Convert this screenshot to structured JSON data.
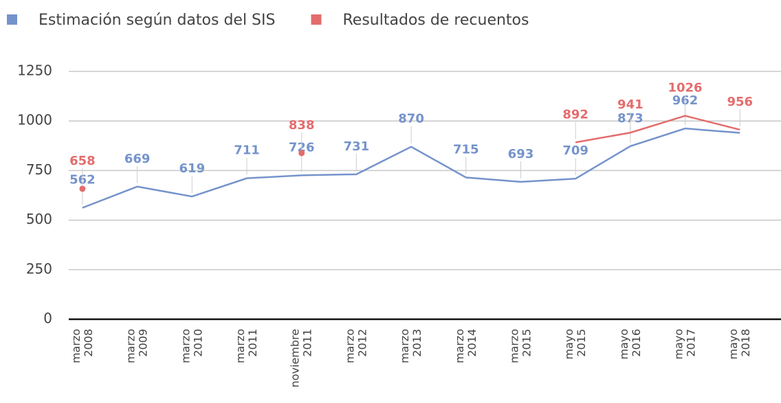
{
  "chart_data": {
    "type": "line",
    "categories": [
      "marzo 2008",
      "marzo 2009",
      "marzo 2010",
      "marzo 2011",
      "noviembre 2011",
      "marzo 2012",
      "marzo 2013",
      "marzo 2014",
      "marzo 2015",
      "mayo 2015",
      "mayo 2016",
      "mayo 2017",
      "mayo 2018"
    ],
    "series": [
      {
        "name": "Estimación según datos del SIS",
        "color": "#7593cb",
        "values": [
          562,
          669,
          619,
          711,
          726,
          731,
          870,
          715,
          693,
          709,
          873,
          962,
          940
        ],
        "value_labels": [
          "562",
          "669",
          "619",
          "711",
          "726",
          "731",
          "870",
          "715",
          "693",
          "709",
          "873",
          "962",
          null
        ]
      },
      {
        "name": "Resultados de recuentos",
        "color": "#e46c6c",
        "values": [
          658,
          null,
          null,
          null,
          838,
          null,
          null,
          null,
          null,
          892,
          941,
          1026,
          956
        ]
      }
    ],
    "ylim": [
      0,
      1250
    ],
    "yticks": [
      0,
      250,
      500,
      750,
      1000,
      1250
    ],
    "grid": true,
    "legend": "top"
  }
}
